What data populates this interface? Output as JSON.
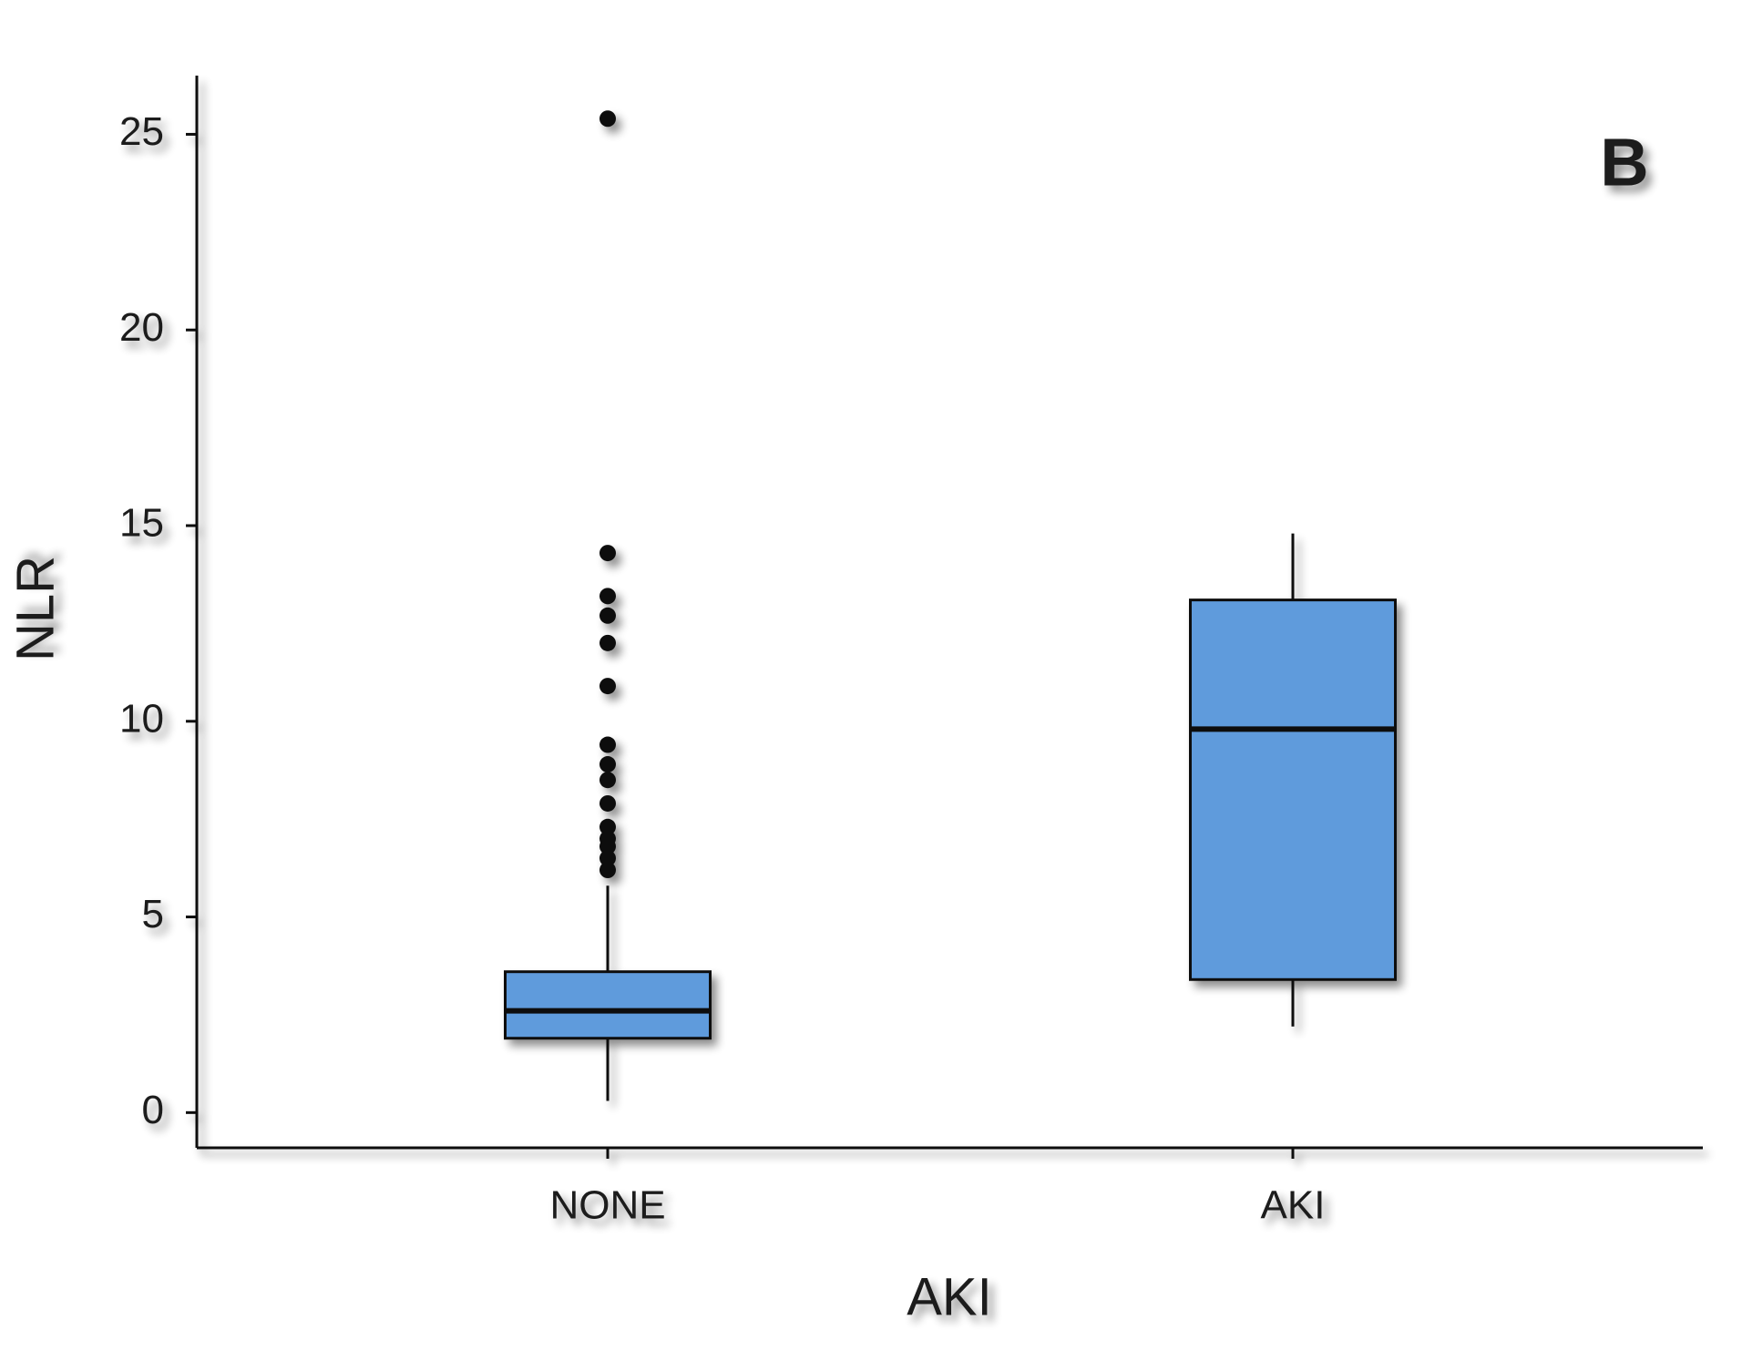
{
  "chart_data": {
    "type": "box",
    "annotation": "B",
    "x_label": "AKI",
    "y_label": "NLR",
    "color": "#5e9bdc",
    "categories": [
      "NONE",
      "AKI"
    ],
    "boxes": [
      {
        "whisker_low": 0.3,
        "q1": 1.9,
        "median": 2.6,
        "q3": 3.6,
        "whisker_high": 5.8,
        "outliers": [
          25.4,
          14.3,
          13.2,
          12.7,
          12.0,
          10.9,
          9.4,
          8.9,
          8.5,
          7.9,
          7.3,
          7.0,
          6.8,
          6.5,
          6.2
        ]
      },
      {
        "whisker_low": 2.2,
        "q1": 3.4,
        "median": 9.8,
        "q3": 13.1,
        "whisker_high": 14.8,
        "outliers": []
      }
    ],
    "ylim": [
      -0.9,
      26.5
    ],
    "yticks": [
      0,
      5,
      10,
      15,
      20,
      25
    ]
  }
}
